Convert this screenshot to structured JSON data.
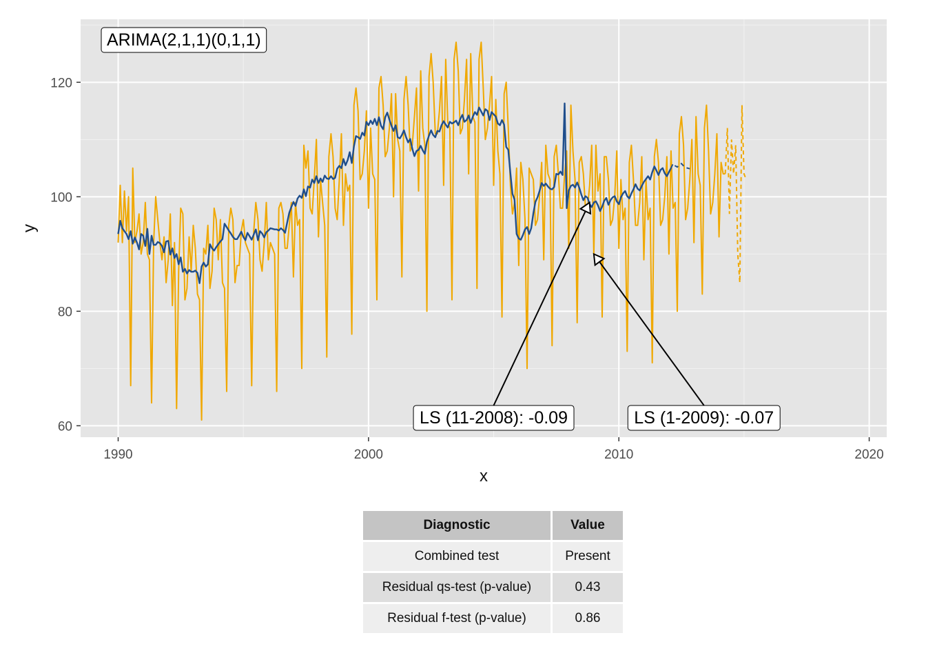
{
  "chart_data": {
    "type": "line",
    "xlabel": "x",
    "ylabel": "y",
    "xlim": [
      1988.5,
      2020.7
    ],
    "ylim": [
      58,
      131
    ],
    "x_ticks": [
      1990,
      2000,
      2010,
      2020
    ],
    "y_ticks": [
      60,
      80,
      100,
      120
    ],
    "grid": true,
    "model_label": "ARIMA(2,1,1)(0,1,1)",
    "colors": {
      "series": "#f0a800",
      "trend": "#1f4e8c",
      "panel": "#e5e5e5",
      "grid": "#ffffff"
    },
    "series": [
      {
        "name": "",
        "style": "solid",
        "color": "#f0a800",
        "start": 1990.0,
        "step": 0.0833333,
        "values": [
          92,
          102,
          92,
          101,
          94,
          100,
          67,
          105,
          92,
          94,
          97,
          90,
          92,
          99,
          90,
          89,
          64,
          92,
          100,
          96,
          92,
          89,
          93,
          85,
          89,
          97,
          81,
          92,
          63,
          87,
          98,
          97,
          82,
          84,
          93,
          87,
          95,
          91,
          83,
          82,
          61,
          91,
          90,
          95,
          84,
          87,
          98,
          96,
          89,
          96,
          85,
          84,
          66,
          95,
          98,
          96,
          85,
          88,
          88,
          94,
          96,
          92,
          91,
          90,
          67,
          94,
          99,
          96,
          89,
          87,
          92,
          99,
          89,
          92,
          91,
          90,
          66,
          98,
          99,
          97,
          91,
          91,
          95,
          99,
          86,
          99,
          95,
          96,
          70,
          109,
          105,
          108,
          98,
          97,
          103,
          110,
          93,
          103,
          99,
          95,
          72,
          107,
          111,
          107,
          98,
          96,
          103,
          111,
          95,
          104,
          101,
          102,
          76,
          116,
          119,
          115,
          103,
          104,
          108,
          115,
          98,
          112,
          104,
          103,
          82,
          119,
          121,
          116,
          107,
          108,
          112,
          118,
          100,
          118,
          110,
          108,
          86,
          117,
          121,
          116,
          108,
          109,
          114,
          119,
          101,
          122,
          112,
          109,
          80,
          121,
          125,
          120,
          111,
          111,
          115,
          121,
          102,
          124,
          113,
          112,
          82,
          124,
          127,
          122,
          111,
          112,
          117,
          124,
          104,
          125,
          114,
          113,
          84,
          124,
          127,
          119,
          110,
          112,
          116,
          121,
          102,
          117,
          108,
          104,
          79,
          118,
          120,
          112,
          102,
          97,
          99,
          105,
          88,
          106,
          103,
          96,
          70,
          105,
          104,
          103,
          95,
          96,
          100,
          106,
          89,
          109,
          104,
          103,
          74,
          107,
          109,
          104,
          98,
          98,
          104,
          108,
          91,
          116,
          108,
          103,
          78,
          106,
          107,
          104,
          98,
          98,
          102,
          109,
          90,
          109,
          101,
          104,
          79,
          107,
          107,
          103,
          95,
          96,
          100,
          108,
          91,
          103,
          96,
          98,
          73,
          106,
          109,
          103,
          95,
          95,
          99,
          107,
          89,
          103,
          96,
          98,
          71,
          107,
          110,
          106,
          95,
          96,
          100,
          107,
          90,
          108,
          98,
          99,
          80,
          111,
          114,
          109,
          96,
          98,
          103,
          110,
          92,
          114,
          104,
          102,
          83,
          112,
          116,
          108,
          97,
          99,
          104,
          111,
          93,
          106,
          104,
          104
        ],
        "forecast_values": [
          112,
          97,
          110,
          104,
          109,
          90,
          85,
          116,
          104,
          103
        ]
      },
      {
        "name": "",
        "style": "solid",
        "color": "#1f4e8c",
        "start": 1990.0,
        "step": 0.0833333,
        "values": [
          93.5,
          95.8,
          94.5,
          94.0,
          93.5,
          92.6,
          94.0,
          91.8,
          92.9,
          92.0,
          90.8,
          93.5,
          93.2,
          91.4,
          94.4,
          90.0,
          93.2,
          91.6,
          91.6,
          92.1,
          91.9,
          91.4,
          90.3,
          92.2,
          92.3,
          89.9,
          91.0,
          89.3,
          90.0,
          88.2,
          89.4,
          86.9,
          87.4,
          86.6,
          87.2,
          86.9,
          86.9,
          87.1,
          86.7,
          84.9,
          87.8,
          88.5,
          87.8,
          88.2,
          91.7,
          91.0,
          90.6,
          91.2,
          91.7,
          92.2,
          92.6,
          95.3,
          94.7,
          94.1,
          93.6,
          93.0,
          92.6,
          92.6,
          93.2,
          93.9,
          93.0,
          92.4,
          93.7,
          93.1,
          92.5,
          93.4,
          94.3,
          92.4,
          94.0,
          93.6,
          92.9,
          93.8,
          94.1,
          94.5,
          94.4,
          94.3,
          94.3,
          94.1,
          94.5,
          94.2,
          93.7,
          95.5,
          97.2,
          98.2,
          99.1,
          98.4,
          99.7,
          100.2,
          99.8,
          101.3,
          100.1,
          101.8,
          101.6,
          103.0,
          102.4,
          103.6,
          102.4,
          103.2,
          102.6,
          103.7,
          103.2,
          103.1,
          103.6,
          103.1,
          103.3,
          104.9,
          105.4,
          105.0,
          106.6,
          105.5,
          106.4,
          107.8,
          105.9,
          108.8,
          110.6,
          110.4,
          110.1,
          111.2,
          110.7,
          113.1,
          112.5,
          113.3,
          112.7,
          113.6,
          112.5,
          113.9,
          112.4,
          111.8,
          113.9,
          114.7,
          113.5,
          112.4,
          111.5,
          112.5,
          110.4,
          110.2,
          110.8,
          111.6,
          110.4,
          109.5,
          110.1,
          108.4,
          107.1,
          108.0,
          108.2,
          108.9,
          108.1,
          107.5,
          109.6,
          110.7,
          111.6,
          110.8,
          110.4,
          111.5,
          111.4,
          112.5,
          113.2,
          112.6,
          112.1,
          113.1,
          112.8,
          113.0,
          113.3,
          112.5,
          113.6,
          114.3,
          113.1,
          113.4,
          114.2,
          112.9,
          114.0,
          114.8,
          114.3,
          115.6,
          114.9,
          114.2,
          115.3,
          115.0,
          113.4,
          114.8,
          114.4,
          114.0,
          112.8,
          112.5,
          113.4,
          112.6,
          108.7,
          108.2,
          104.1,
          100.5,
          99.5,
          93.5,
          92.7,
          92.5,
          93.3,
          94.3,
          94.7,
          93.5,
          94.5,
          97.1,
          99.1,
          99.9,
          101.0,
          102.4,
          101.9,
          102.3,
          101.8,
          101.4,
          101.3,
          101.7,
          104.0,
          103.9,
          104.4,
          103.8,
          116.3,
          98.0,
          101.1,
          101.9,
          102.1,
          101.6,
          102.5,
          101.6,
          100.4,
          99.4,
          100.1,
          99.8,
          98.7,
          98.2,
          99.0,
          99.2,
          98.5,
          97.5,
          98.3,
          99.3,
          99.8,
          98.6,
          99.4,
          99.9,
          100.1,
          99.2,
          98.7,
          99.9,
          100.6,
          101.0,
          100.1,
          99.7,
          100.6,
          101.3,
          102.2,
          101.4,
          101.1,
          101.9,
          102.6,
          103.1,
          103.6,
          103.0,
          104.3,
          105.3,
          104.6,
          103.8,
          104.7,
          105.0,
          104.1,
          103.6,
          104.3,
          105.0
        ],
        "forecast_values": [
          105.8,
          105.4,
          105.2,
          105.6,
          105.8,
          105.4,
          105.1,
          105.0,
          104.9
        ]
      }
    ],
    "annotations": [
      {
        "text": "LS (11-2008): -0.09",
        "target_x": 2008.83,
        "target_y": 99.0,
        "label_x": 2005.0,
        "label_y": 61.5
      },
      {
        "text": "LS (1-2009): -0.07",
        "target_x": 2009.0,
        "target_y": 90.0,
        "label_x": 2013.4,
        "label_y": 61.5
      }
    ]
  },
  "table": {
    "headers": [
      "Diagnostic",
      "Value"
    ],
    "rows": [
      [
        "Combined test",
        "Present"
      ],
      [
        "Residual qs-test (p-value)",
        "0.43"
      ],
      [
        "Residual f-test (p-value)",
        "0.86"
      ]
    ]
  }
}
